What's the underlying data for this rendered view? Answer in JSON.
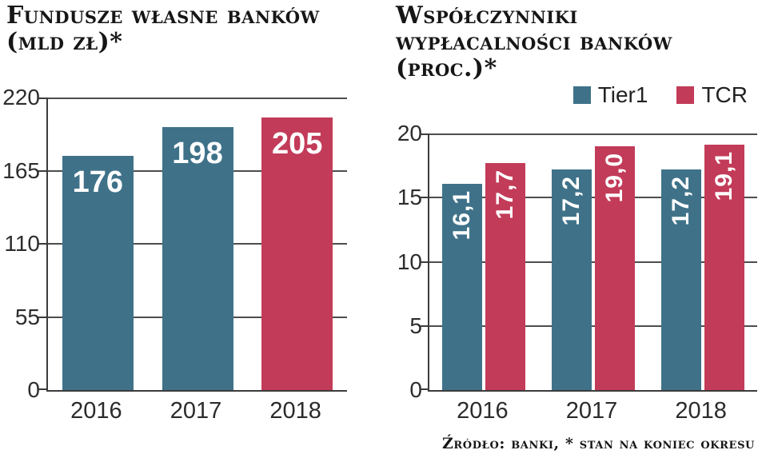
{
  "source_note": "Źródło: banki, * stan na koniec okresu",
  "colors": {
    "tier1": "#3f7289",
    "tcr": "#c23b58",
    "axis": "#3b3b3b",
    "grid": "#4d4d4d",
    "bar_label": "#ffffff",
    "tick_label": "#2d2d2d",
    "title_text": "#161616"
  },
  "chart_data": [
    {
      "type": "bar",
      "title": "Fundusze własne banków",
      "subtitle": "(mld zł)*",
      "categories": [
        "2016",
        "2017",
        "2018"
      ],
      "values": [
        176,
        198,
        205
      ],
      "value_labels": [
        "176",
        "198",
        "205"
      ],
      "bar_colors": [
        "#3f7289",
        "#3f7289",
        "#c23b58"
      ],
      "ylim": [
        0,
        220
      ],
      "yticks": [
        0,
        55,
        110,
        165,
        220
      ],
      "grid": true,
      "xlabel": "",
      "ylabel": ""
    },
    {
      "type": "bar",
      "title": "Współczynniki wypłacalności banków",
      "title_lines": [
        "Współczynniki",
        "wypłacalności banków"
      ],
      "subtitle": "(proc.)*",
      "categories": [
        "2016",
        "2017",
        "2018"
      ],
      "series": [
        {
          "name": "Tier1",
          "color": "#3f7289",
          "values": [
            16.1,
            17.2,
            17.2
          ],
          "value_labels": [
            "16,1",
            "17,2",
            "17,2"
          ]
        },
        {
          "name": "TCR",
          "color": "#c23b58",
          "values": [
            17.7,
            19.0,
            19.1
          ],
          "value_labels": [
            "17,7",
            "19,0",
            "19,1"
          ]
        }
      ],
      "ylim": [
        0,
        20
      ],
      "yticks": [
        0,
        5,
        10,
        15,
        20
      ],
      "grid": true,
      "legend_position": "top-right",
      "xlabel": "",
      "ylabel": ""
    }
  ]
}
